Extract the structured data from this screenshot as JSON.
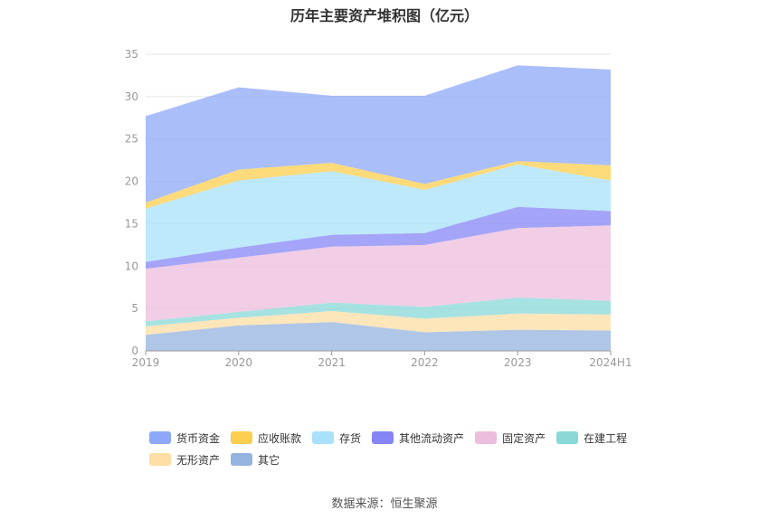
{
  "title": "历年主要资产堆积图（亿元）",
  "source": "数据来源：恒生聚源",
  "chart_data": {
    "type": "area",
    "stacked": true,
    "categories": [
      "2019",
      "2020",
      "2021",
      "2022",
      "2023",
      "2024H1"
    ],
    "ylim": [
      0,
      35
    ],
    "yticks": [
      "0",
      "5",
      "10",
      "15",
      "20",
      "25",
      "30",
      "35"
    ],
    "grid": true,
    "legend_position": "bottom",
    "series": [
      {
        "name": "其它",
        "color": "#94b3df",
        "values": [
          1.9,
          3.0,
          3.4,
          2.2,
          2.5,
          2.4
        ]
      },
      {
        "name": "无形资产",
        "color": "#fedea4",
        "values": [
          1.0,
          0.9,
          1.3,
          1.6,
          1.9,
          1.9
        ]
      },
      {
        "name": "在建工程",
        "color": "#8ad8d8",
        "values": [
          0.6,
          0.7,
          1.0,
          1.4,
          1.9,
          1.6
        ]
      },
      {
        "name": "固定资产",
        "color": "#ecbddd",
        "values": [
          6.2,
          6.4,
          6.6,
          7.3,
          8.2,
          8.9
        ]
      },
      {
        "name": "其他流动资产",
        "color": "#8585f5",
        "values": [
          0.8,
          1.2,
          1.4,
          1.4,
          2.5,
          1.7
        ]
      },
      {
        "name": "存货",
        "color": "#a8e1f9",
        "values": [
          6.3,
          7.9,
          7.5,
          5.1,
          5.0,
          3.6
        ]
      },
      {
        "name": "应收账款",
        "color": "#fccd4e",
        "values": [
          0.7,
          1.3,
          1.0,
          0.7,
          0.4,
          1.8
        ]
      },
      {
        "name": "货币资金",
        "color": "#8da8f8",
        "values": [
          10.2,
          9.7,
          7.9,
          10.4,
          11.3,
          11.3
        ]
      }
    ],
    "legend_order": [
      "货币资金",
      "应收账款",
      "存货",
      "其他流动资产",
      "固定资产",
      "在建工程",
      "无形资产",
      "其它"
    ]
  }
}
